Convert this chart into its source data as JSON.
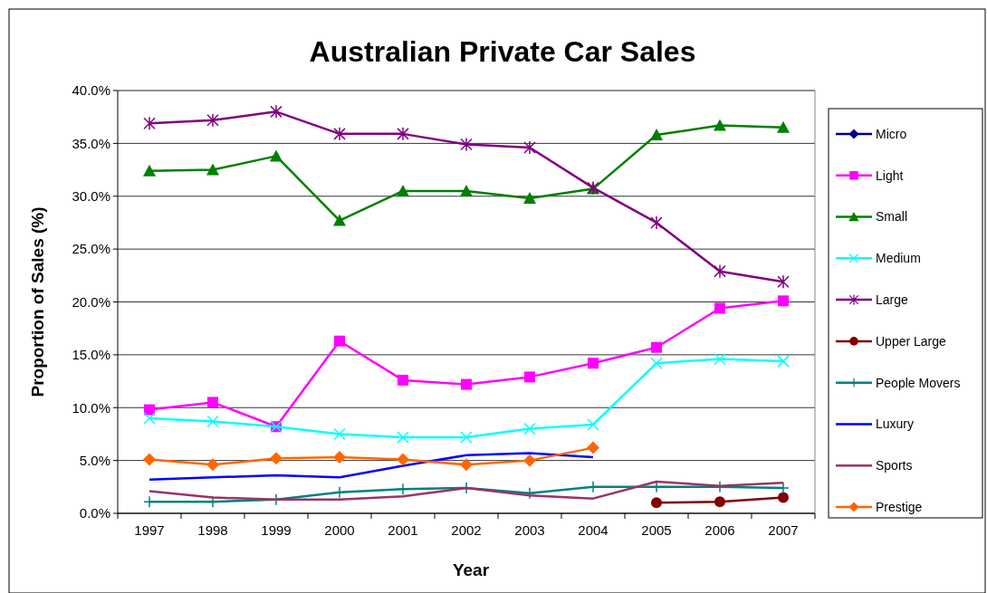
{
  "chart_data": {
    "type": "line",
    "title": "Australian Private Car Sales",
    "xlabel": "Year",
    "ylabel": "Proportion of Sales (%)",
    "categories": [
      "1997",
      "1998",
      "1999",
      "2000",
      "2001",
      "2002",
      "2003",
      "2004",
      "2005",
      "2006",
      "2007"
    ],
    "ylim": [
      0,
      40
    ],
    "yticks": [
      {
        "value": 0,
        "label": "0.0%"
      },
      {
        "value": 5,
        "label": "5.0%"
      },
      {
        "value": 10,
        "label": "10.0%"
      },
      {
        "value": 15,
        "label": "15.0%"
      },
      {
        "value": 20,
        "label": "20.0%"
      },
      {
        "value": 25,
        "label": "25.0%"
      },
      {
        "value": 30,
        "label": "30.0%"
      },
      {
        "value": 35,
        "label": "35.0%"
      },
      {
        "value": 40,
        "label": "40.0%"
      }
    ],
    "grid": "y",
    "legend": "right",
    "series": [
      {
        "name": "Micro",
        "color": "#000080",
        "marker": "diamond",
        "values": [
          null,
          null,
          null,
          null,
          null,
          null,
          null,
          null,
          null,
          null,
          null
        ]
      },
      {
        "name": "Light",
        "color": "#ff00ff",
        "marker": "square",
        "values": [
          9.8,
          10.5,
          8.2,
          16.3,
          12.6,
          12.2,
          12.9,
          14.2,
          15.7,
          19.4,
          20.1
        ]
      },
      {
        "name": "Small",
        "color": "#008000",
        "marker": "triangle",
        "values": [
          32.4,
          32.5,
          33.8,
          27.7,
          30.5,
          30.5,
          29.8,
          30.7,
          35.8,
          36.7,
          36.5
        ]
      },
      {
        "name": "Medium",
        "color": "#00ffff",
        "marker": "cross",
        "values": [
          9.0,
          8.7,
          8.2,
          7.5,
          7.2,
          7.2,
          8.0,
          8.4,
          14.2,
          14.6,
          14.4
        ]
      },
      {
        "name": "Large",
        "color": "#800080",
        "marker": "cross",
        "values": [
          36.9,
          37.2,
          38.0,
          35.9,
          35.9,
          34.9,
          34.6,
          30.8,
          27.5,
          22.9,
          21.9
        ]
      },
      {
        "name": "Upper Large",
        "color": "#800000",
        "marker": "circle",
        "values": [
          null,
          null,
          null,
          null,
          null,
          null,
          null,
          null,
          1.0,
          1.1,
          1.5
        ]
      },
      {
        "name": "People Movers",
        "color": "#008080",
        "marker": "cross",
        "values": [
          1.1,
          1.1,
          1.3,
          2.0,
          2.3,
          2.4,
          1.9,
          2.5,
          2.5,
          2.5,
          2.4
        ]
      },
      {
        "name": "Luxury",
        "color": "#0000ff",
        "marker": "none",
        "values": [
          3.2,
          3.4,
          3.6,
          3.4,
          4.5,
          5.5,
          5.7,
          5.3,
          null,
          null,
          null
        ]
      },
      {
        "name": "Sports",
        "color": "#993366",
        "marker": "none",
        "values": [
          2.1,
          1.5,
          1.3,
          1.3,
          1.6,
          2.4,
          1.7,
          1.4,
          3.0,
          2.6,
          2.9
        ]
      },
      {
        "name": "Prestige",
        "color": "#ff6600",
        "marker": "diamond",
        "values": [
          5.1,
          4.6,
          5.2,
          5.3,
          5.1,
          4.6,
          5.0,
          6.2,
          null,
          null,
          null
        ]
      }
    ]
  }
}
